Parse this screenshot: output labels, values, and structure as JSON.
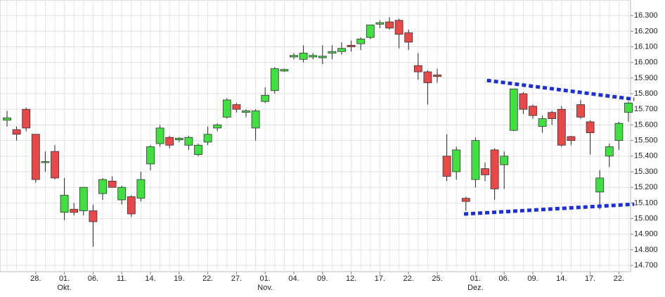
{
  "chart_data": {
    "type": "candlestick",
    "categories": [
      null,
      null,
      null,
      "28.",
      null,
      null,
      "01.",
      null,
      null,
      "06.",
      null,
      null,
      "11.",
      null,
      null,
      "14.",
      null,
      null,
      "19.",
      null,
      null,
      "22.",
      null,
      null,
      "27.",
      null,
      null,
      "01.",
      null,
      null,
      "04.",
      null,
      null,
      "09.",
      null,
      null,
      "12.",
      null,
      null,
      "17.",
      null,
      null,
      "22.",
      null,
      null,
      "25.",
      null,
      null,
      null,
      "01.",
      null,
      null,
      "06.",
      null,
      null,
      "09.",
      null,
      null,
      "14.",
      null,
      null,
      "17.",
      null,
      null,
      "22.",
      null
    ],
    "months": [
      null,
      null,
      null,
      null,
      null,
      null,
      "Okt.",
      null,
      null,
      null,
      null,
      null,
      null,
      null,
      null,
      null,
      null,
      null,
      null,
      null,
      null,
      null,
      null,
      null,
      null,
      null,
      null,
      "Nov.",
      null,
      null,
      null,
      null,
      null,
      null,
      null,
      null,
      null,
      null,
      null,
      null,
      null,
      null,
      null,
      null,
      null,
      null,
      null,
      null,
      null,
      "Dez.",
      null,
      null,
      null,
      null,
      null,
      null,
      null,
      null,
      null,
      null,
      null,
      null,
      null,
      null,
      null,
      null
    ],
    "open": [
      15630,
      15570,
      15700,
      15540,
      15360,
      15430,
      15040,
      15060,
      15050,
      15050,
      15160,
      15240,
      15120,
      15140,
      15130,
      15350,
      15480,
      15520,
      15505,
      15470,
      15410,
      15490,
      15580,
      15650,
      15730,
      15680,
      15580,
      15750,
      15820,
      15945,
      16035,
      16020,
      16035,
      16030,
      16060,
      16070,
      16110,
      16120,
      16160,
      16245,
      16260,
      16270,
      16190,
      15980,
      15940,
      15920,
      15400,
      15300,
      15130,
      15250,
      15320,
      15440,
      15345,
      15565,
      15800,
      15720,
      15590,
      15680,
      15700,
      15525,
      15730,
      15620,
      15170,
      15400,
      15500,
      15680
    ],
    "high": [
      15690,
      15590,
      15710,
      15540,
      15430,
      15470,
      15260,
      15100,
      15200,
      15090,
      15260,
      15270,
      15210,
      15150,
      15300,
      15470,
      15600,
      15530,
      15520,
      15530,
      15480,
      15590,
      15610,
      15770,
      15740,
      15700,
      15700,
      15840,
      15970,
      15960,
      16060,
      16110,
      16060,
      16110,
      16110,
      16130,
      16140,
      16160,
      16240,
      16270,
      16290,
      16280,
      16210,
      16060,
      15950,
      15960,
      15540,
      15460,
      15140,
      15520,
      15360,
      15450,
      15430,
      15830,
      15810,
      15730,
      15660,
      15690,
      15720,
      15530,
      15760,
      15630,
      15310,
      15480,
      15620,
      15750
    ],
    "low": [
      15590,
      15500,
      15560,
      15230,
      15300,
      15250,
      14990,
      15020,
      15020,
      14820,
      15120,
      15200,
      15090,
      15010,
      15110,
      15310,
      15460,
      15450,
      15490,
      15440,
      15400,
      15470,
      15560,
      15640,
      15680,
      15650,
      15500,
      15740,
      15800,
      15940,
      16020,
      16000,
      16020,
      15990,
      16020,
      16050,
      16070,
      16080,
      16150,
      16220,
      16210,
      16090,
      16080,
      15890,
      15730,
      15870,
      15240,
      15250,
      15050,
      15200,
      15240,
      15120,
      15190,
      15560,
      15670,
      15640,
      15550,
      15600,
      15460,
      15470,
      15640,
      15410,
      15060,
      15330,
      15440,
      15620
    ],
    "close": [
      15645,
      15540,
      15580,
      15250,
      15365,
      15260,
      15150,
      15040,
      15200,
      14980,
      15250,
      15200,
      15200,
      15030,
      15250,
      15460,
      15580,
      15470,
      15515,
      15520,
      15470,
      15540,
      15600,
      15760,
      15700,
      15690,
      15690,
      15790,
      15960,
      15955,
      16045,
      16060,
      16045,
      16040,
      16070,
      16090,
      16100,
      16150,
      16240,
      16255,
      16220,
      16180,
      16130,
      15940,
      15870,
      15910,
      15270,
      15440,
      15110,
      15500,
      15280,
      15190,
      15400,
      15830,
      15700,
      15660,
      15640,
      15640,
      15470,
      15500,
      15650,
      15550,
      15260,
      15460,
      15610,
      15740
    ],
    "up_color": "#40e040",
    "down_color": "#e84848",
    "ylim": [
      14660,
      16400
    ],
    "yticks": [
      {
        "value": 14700,
        "label": "14.700"
      },
      {
        "value": 14800,
        "label": "14.800"
      },
      {
        "value": 14900,
        "label": "14.900"
      },
      {
        "value": 15000,
        "label": "15.000"
      },
      {
        "value": 15100,
        "label": "15.100"
      },
      {
        "value": 15200,
        "label": "15.200"
      },
      {
        "value": 15300,
        "label": "15.300"
      },
      {
        "value": 15400,
        "label": "15.400"
      },
      {
        "value": 15500,
        "label": "15.500"
      },
      {
        "value": 15600,
        "label": "15.600"
      },
      {
        "value": 15700,
        "label": "15.700"
      },
      {
        "value": 15800,
        "label": "15.800"
      },
      {
        "value": 15900,
        "label": "15.900"
      },
      {
        "value": 16000,
        "label": "16.000"
      },
      {
        "value": 16100,
        "label": "16.100"
      },
      {
        "value": 16200,
        "label": "16.200"
      },
      {
        "value": 16300,
        "label": "16.300"
      }
    ],
    "grid": true,
    "trendlines": [
      {
        "color": "#1a2fd6",
        "x": [
          50.2,
          65.6
        ],
        "values": [
          15885,
          15764
        ]
      },
      {
        "color": "#1a2fd6",
        "x": [
          47.8,
          65.6
        ],
        "values": [
          15029,
          15092
        ]
      }
    ]
  }
}
